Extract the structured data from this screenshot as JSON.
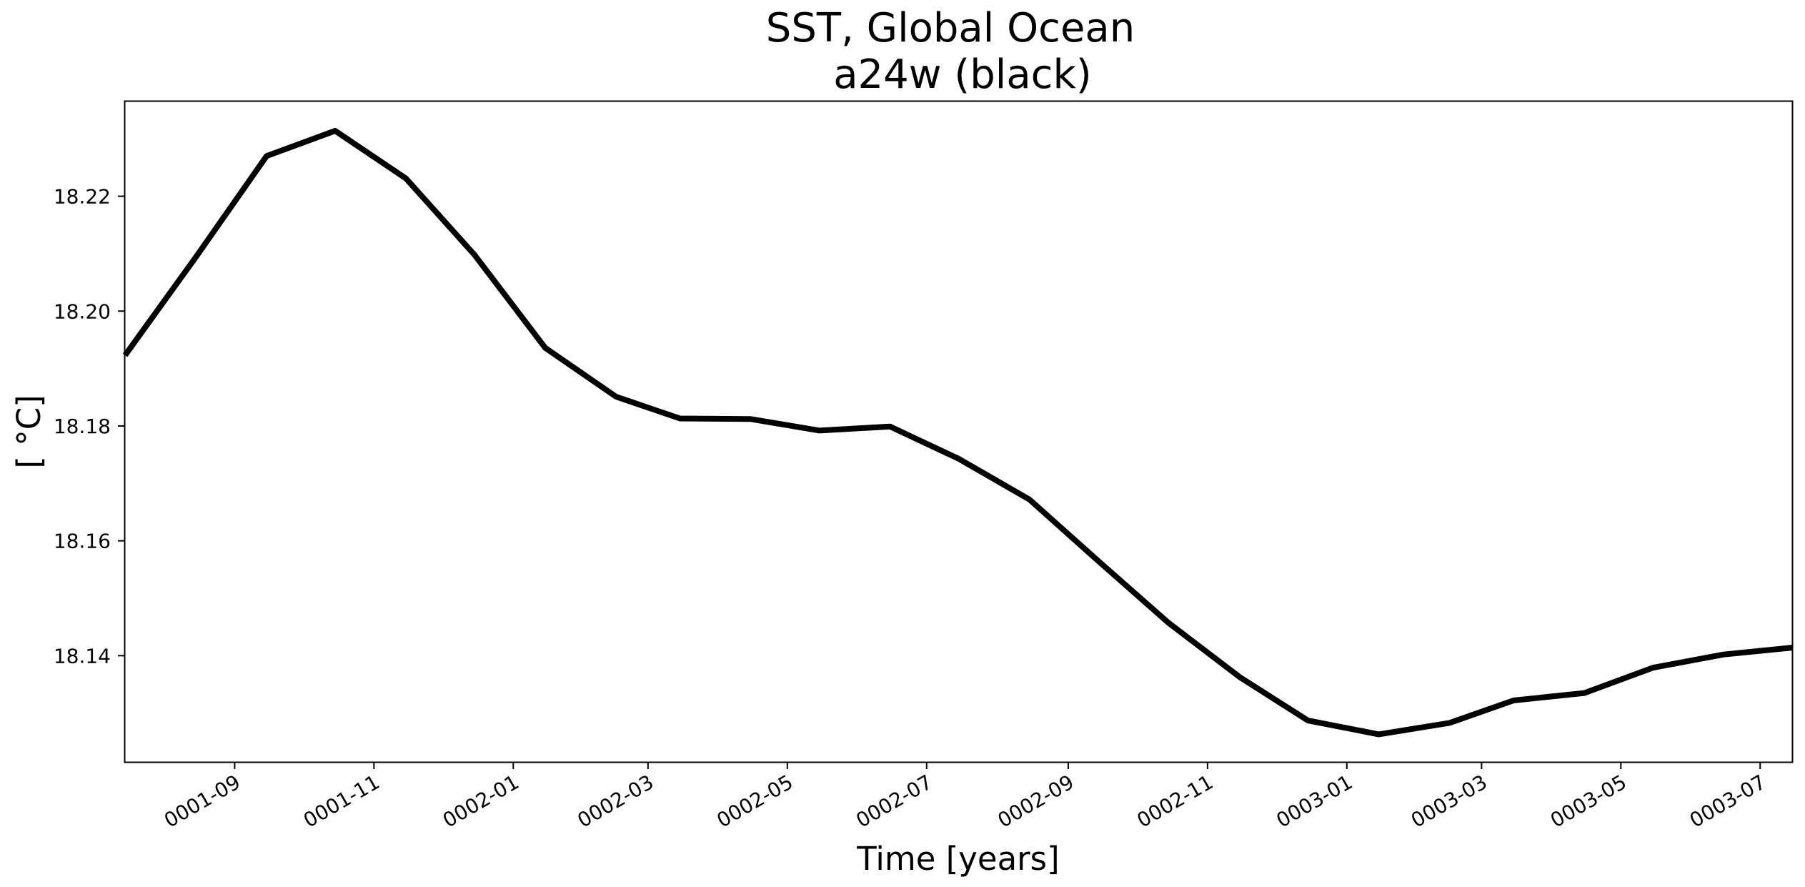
{
  "chart_data": {
    "type": "line",
    "title": "SST, Global Ocean",
    "subtitle": "a24w (black)",
    "xlabel": "Time [years]",
    "ylabel": "[ $^\\circ$C]",
    "ylabel_display": "[ °C]",
    "x_start": "0001-07-15",
    "x_end": "0003-07-15",
    "xticks": [
      "0001-09",
      "0001-11",
      "0002-01",
      "0002-03",
      "0002-05",
      "0002-07",
      "0002-09",
      "0002-11",
      "0003-01",
      "0003-03",
      "0003-05",
      "0003-07"
    ],
    "ylim": [
      18.1215,
      18.2365
    ],
    "yticks": [
      18.14,
      18.16,
      18.18,
      18.2,
      18.22
    ],
    "ytick_labels": [
      "18.14",
      "18.16",
      "18.18",
      "18.20",
      "18.22"
    ],
    "grid": false,
    "series": [
      {
        "name": "a24w",
        "color": "#000000",
        "points": [
          {
            "x": "0001-07-15",
            "y": 18.1923
          },
          {
            "x": "0001-08-15",
            "y": 18.2094
          },
          {
            "x": "0001-09-15",
            "y": 18.227
          },
          {
            "x": "0001-10-15",
            "y": 18.2314
          },
          {
            "x": "0001-11-15",
            "y": 18.2231
          },
          {
            "x": "0001-12-15",
            "y": 18.2098
          },
          {
            "x": "0002-01-15",
            "y": 18.1936
          },
          {
            "x": "0002-02-15",
            "y": 18.1851
          },
          {
            "x": "0002-03-15",
            "y": 18.1813
          },
          {
            "x": "0002-04-15",
            "y": 18.1812
          },
          {
            "x": "0002-05-15",
            "y": 18.1792
          },
          {
            "x": "0002-06-15",
            "y": 18.1799
          },
          {
            "x": "0002-07-15",
            "y": 18.1743
          },
          {
            "x": "0002-08-15",
            "y": 18.1672
          },
          {
            "x": "0002-09-15",
            "y": 18.1562
          },
          {
            "x": "0002-10-15",
            "y": 18.1457
          },
          {
            "x": "0002-11-15",
            "y": 18.1363
          },
          {
            "x": "0002-12-15",
            "y": 18.1287
          },
          {
            "x": "0003-01-15",
            "y": 18.1263
          },
          {
            "x": "0003-02-15",
            "y": 18.1283
          },
          {
            "x": "0003-03-15",
            "y": 18.1322
          },
          {
            "x": "0003-04-15",
            "y": 18.1335
          },
          {
            "x": "0003-05-15",
            "y": 18.1379
          },
          {
            "x": "0003-06-15",
            "y": 18.1402
          },
          {
            "x": "0003-07-15",
            "y": 18.1414
          }
        ]
      }
    ]
  }
}
